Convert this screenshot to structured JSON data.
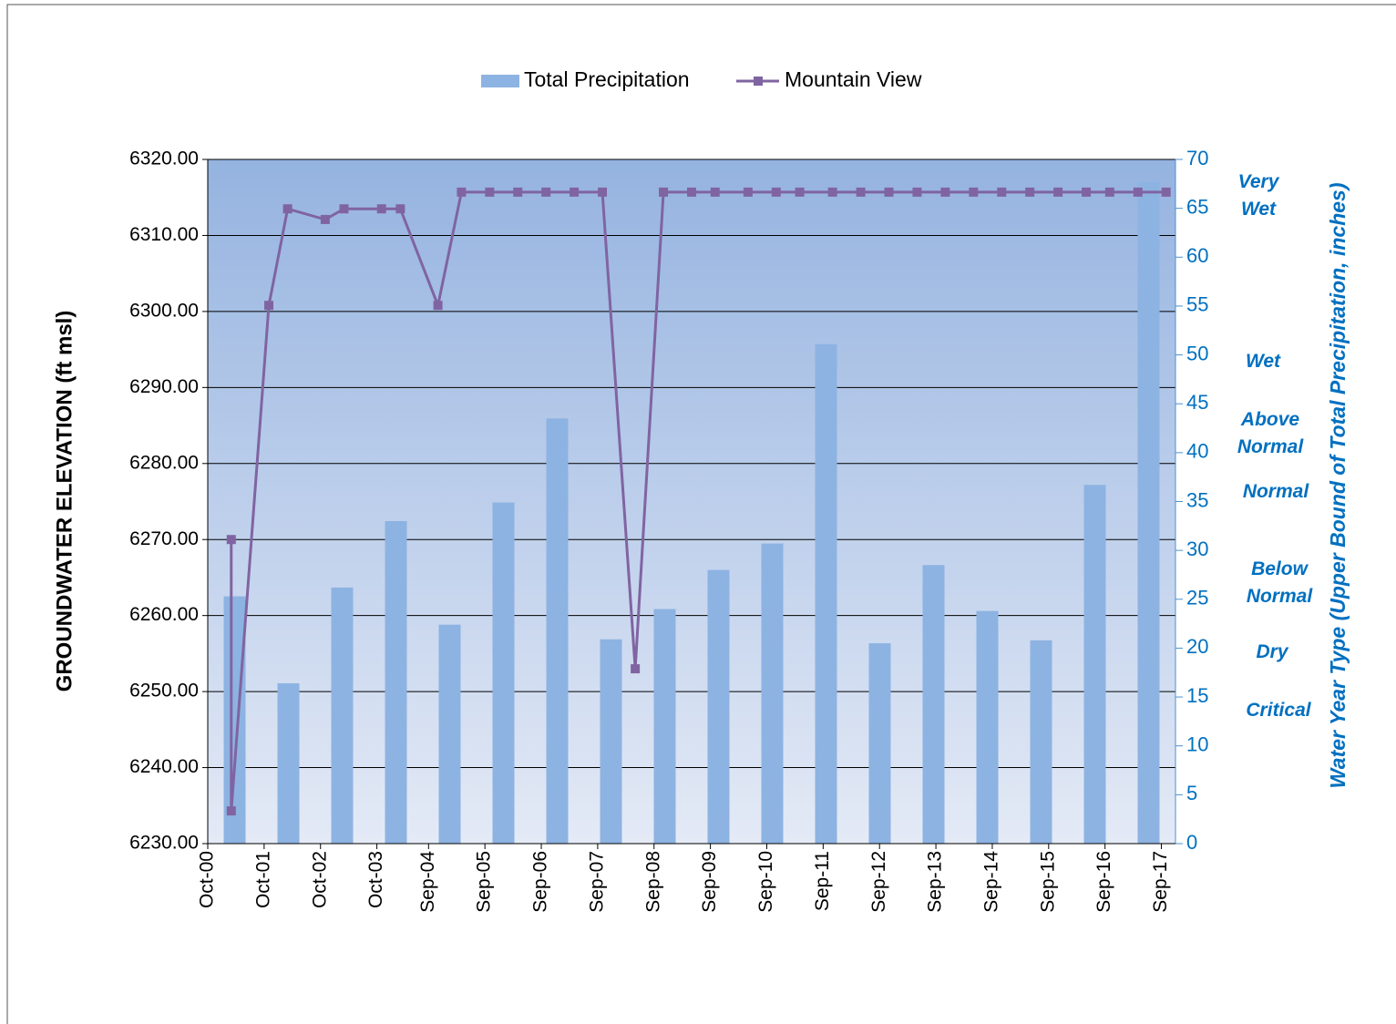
{
  "chart_data": {
    "type": "bar-line",
    "legend": "top",
    "grid": true,
    "y_label": "GROUNDWATER ELEVATION (ft msl)",
    "y2_label": "Water Year Type (Upper Bound of Total Precipitation, inches)",
    "annotations": [
      [
        "Very",
        "Wet"
      ],
      [
        "Wet"
      ],
      [
        "Above",
        "Normal"
      ],
      [
        "Normal"
      ],
      [
        "Below",
        "Normal"
      ],
      [
        "Dry"
      ],
      [
        "Critical"
      ]
    ],
    "xlim": [
      "2000-10",
      "2017-12"
    ],
    "xticks": [
      {
        "value": "2000-10",
        "label": "Oct-00"
      },
      {
        "value": "2001-10",
        "label": "Oct-01"
      },
      {
        "value": "2002-10",
        "label": "Oct-02"
      },
      {
        "value": "2003-10",
        "label": "Oct-03"
      },
      {
        "value": "2004-09",
        "label": "Sep-04"
      },
      {
        "value": "2005-09",
        "label": "Sep-05"
      },
      {
        "value": "2006-09",
        "label": "Sep-06"
      },
      {
        "value": "2007-09",
        "label": "Sep-07"
      },
      {
        "value": "2008-09",
        "label": "Sep-08"
      },
      {
        "value": "2009-09",
        "label": "Sep-09"
      },
      {
        "value": "2010-09",
        "label": "Sep-10"
      },
      {
        "value": "2011-09",
        "label": "Sep-11"
      },
      {
        "value": "2012-09",
        "label": "Sep-12"
      },
      {
        "value": "2013-09",
        "label": "Sep-13"
      },
      {
        "value": "2014-09",
        "label": "Sep-14"
      },
      {
        "value": "2015-09",
        "label": "Sep-15"
      },
      {
        "value": "2016-09",
        "label": "Sep-16"
      },
      {
        "value": "2017-09",
        "label": "Sep-17"
      }
    ],
    "ylim": [
      6230,
      6320
    ],
    "yticks": [
      {
        "value": 6230,
        "label": "6230.00"
      },
      {
        "value": 6240,
        "label": "6240.00"
      },
      {
        "value": 6250,
        "label": "6250.00"
      },
      {
        "value": 6260,
        "label": "6260.00"
      },
      {
        "value": 6270,
        "label": "6270.00"
      },
      {
        "value": 6280,
        "label": "6280.00"
      },
      {
        "value": 6290,
        "label": "6290.00"
      },
      {
        "value": 6300,
        "label": "6300.00"
      },
      {
        "value": 6310,
        "label": "6310.00"
      },
      {
        "value": 6320,
        "label": "6320.00"
      }
    ],
    "y2lim": [
      0,
      70
    ],
    "y2ticks": [
      0,
      5,
      10,
      15,
      20,
      25,
      30,
      35,
      40,
      45,
      50,
      55,
      60,
      65,
      70
    ],
    "series": [
      {
        "name": "Total Precipitation",
        "type": "bar",
        "axis": "y2",
        "color": "#8db3e2",
        "values": [
          25.3,
          16.4,
          26.2,
          33.0,
          22.4,
          34.9,
          43.5,
          20.9,
          24.0,
          28.0,
          30.7,
          51.1,
          20.5,
          28.5,
          23.8,
          20.8,
          36.7,
          67.7
        ]
      },
      {
        "name": "Mountain View",
        "type": "line",
        "color": "#8064a2",
        "x": [
          "2001-03",
          "2001-03",
          "2001-11",
          "2002-03",
          "2002-11",
          "2003-03",
          "2003-11",
          "2004-03",
          "2004-11",
          "2005-04",
          "2005-10",
          "2006-04",
          "2006-10",
          "2007-04",
          "2007-10",
          "2008-05",
          "2008-11",
          "2009-05",
          "2009-10",
          "2010-05",
          "2010-11",
          "2011-04",
          "2011-11",
          "2012-05",
          "2012-11",
          "2013-05",
          "2013-11",
          "2014-05",
          "2014-11",
          "2015-05",
          "2015-11",
          "2016-05",
          "2016-10",
          "2017-04",
          "2017-10"
        ],
        "values": [
          6270,
          6234.3,
          6300.8,
          6313.5,
          6312.1,
          6313.5,
          6313.5,
          6313.5,
          6300.8,
          6315.7,
          6315.7,
          6315.7,
          6315.7,
          6315.7,
          6315.7,
          6253,
          6315.7,
          6315.7,
          6315.7,
          6315.7,
          6315.7,
          6315.7,
          6315.7,
          6315.7,
          6315.7,
          6315.7,
          6315.7,
          6315.7,
          6315.7,
          6315.7,
          6315.7,
          6315.7,
          6315.7,
          6315.7,
          6315.7
        ]
      }
    ]
  }
}
